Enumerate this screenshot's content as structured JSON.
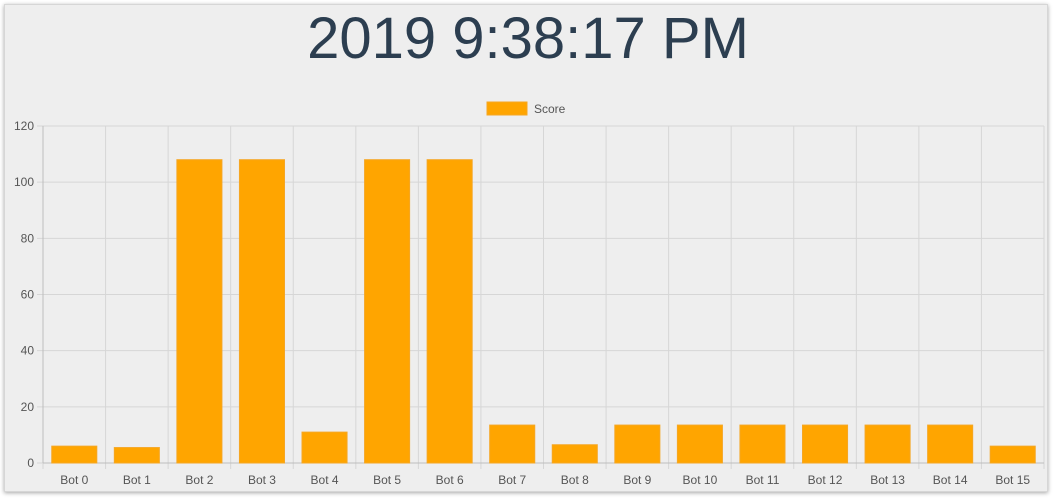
{
  "header": {
    "title": "2019 9:38:17 PM"
  },
  "colors": {
    "bar_fill": "#ffa500",
    "bar_stroke": "#f5a623",
    "grid": "#d6d6d6",
    "axis_text": "#555555",
    "title_text": "#2c3e50",
    "panel_background": "#eeeeee"
  },
  "chart_data": {
    "type": "bar",
    "title": "",
    "xlabel": "",
    "ylabel": "",
    "legend_position": "top-center",
    "grid": true,
    "ylim": [
      0,
      120
    ],
    "yticks": [
      0,
      20,
      40,
      60,
      80,
      100,
      120
    ],
    "categories": [
      "Bot 0",
      "Bot 1",
      "Bot 2",
      "Bot 3",
      "Bot 4",
      "Bot 5",
      "Bot 6",
      "Bot 7",
      "Bot 8",
      "Bot 9",
      "Bot 10",
      "Bot 11",
      "Bot 12",
      "Bot 13",
      "Bot 14",
      "Bot 15"
    ],
    "series": [
      {
        "name": "Score",
        "values": [
          6,
          5.5,
          108,
          108,
          11,
          108,
          108,
          13.5,
          6.5,
          13.5,
          13.5,
          13.5,
          13.5,
          13.5,
          13.5,
          6
        ]
      }
    ]
  }
}
